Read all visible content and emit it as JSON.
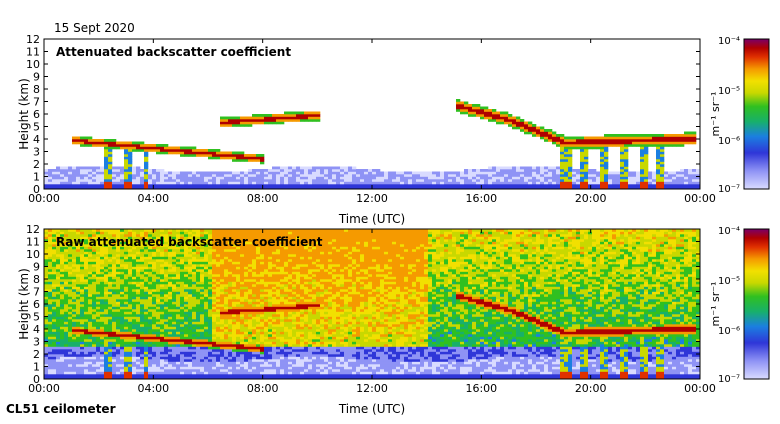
{
  "date": "15 Sept 2020",
  "footer": "CL51 ceilometer",
  "colormap": [
    "#d9dbff",
    "#8f93f5",
    "#2f36d8",
    "#1b7fe0",
    "#18b06a",
    "#30c020",
    "#c8d800",
    "#f2e000",
    "#f59a00",
    "#e03000",
    "#b00000",
    "#7a006a"
  ],
  "chart_data": [
    {
      "type": "heatmap",
      "title": "Attenuated backscatter coefficient",
      "xlabel": "Time (UTC)",
      "ylabel": "Height (km)",
      "xlim": [
        "00:00",
        "00:00"
      ],
      "ylim": [
        0,
        12
      ],
      "x_ticks": [
        "00:00",
        "04:00",
        "08:00",
        "12:00",
        "16:00",
        "20:00",
        "00:00"
      ],
      "y_ticks": [
        "0",
        "1",
        "2",
        "3",
        "4",
        "5",
        "6",
        "7",
        "8",
        "9",
        "10",
        "11",
        "12"
      ],
      "colorbar": {
        "label": "m⁻¹ sr⁻¹",
        "scale": "log",
        "ticks": [
          "10⁻⁷",
          "10⁻⁶",
          "10⁻⁵",
          "10⁻⁴"
        ],
        "range": [
          1e-07,
          0.0001
        ]
      },
      "features": [
        {
          "name": "boundary layer",
          "t_start": 0.0,
          "t_end": 24.0,
          "height_top_km": 1.6
        },
        {
          "name": "cloud layer A",
          "t_start": 1.0,
          "t_end": 8.0,
          "height_km": [
            3.9,
            2.4
          ]
        },
        {
          "name": "cloud layer B",
          "t_start": 6.3,
          "t_end": 10.0,
          "height_km": [
            5.3,
            5.9
          ]
        },
        {
          "name": "cloud layer C",
          "t_start": 15.0,
          "t_end": 23.8,
          "height_km": [
            6.7,
            4.0
          ]
        },
        {
          "name": "precipitation",
          "t_start": 1.8,
          "t_end": 3.8,
          "height_km": [
            3.5,
            0.0
          ]
        },
        {
          "name": "precipitation",
          "t_start": 18.5,
          "t_end": 23.0,
          "height_km": [
            3.5,
            0.0
          ]
        }
      ]
    },
    {
      "type": "heatmap",
      "title": "Raw attenuated backscatter coefficient",
      "xlabel": "Time (UTC)",
      "ylabel": "Height (km)",
      "xlim": [
        "00:00",
        "00:00"
      ],
      "ylim": [
        0,
        12
      ],
      "x_ticks": [
        "00:00",
        "04:00",
        "08:00",
        "12:00",
        "16:00",
        "20:00",
        "00:00"
      ],
      "y_ticks": [
        "0",
        "1",
        "2",
        "3",
        "4",
        "5",
        "6",
        "7",
        "8",
        "9",
        "10",
        "11",
        "12"
      ],
      "colorbar": {
        "label": "m⁻¹ sr⁻¹",
        "scale": "log",
        "ticks": [
          "10⁻⁷",
          "10⁻⁶",
          "10⁻⁵",
          "10⁻⁴"
        ],
        "range": [
          1e-07,
          0.0001
        ]
      },
      "features": [
        {
          "name": "background noise",
          "t_start": 0.0,
          "t_end": 24.0,
          "height_km": [
            2.5,
            12.0
          ]
        },
        {
          "name": "cloud layer A",
          "t_start": 1.0,
          "t_end": 8.0,
          "height_km": [
            3.9,
            2.4
          ]
        },
        {
          "name": "cloud layer B",
          "t_start": 6.3,
          "t_end": 10.0,
          "height_km": [
            5.3,
            5.9
          ]
        },
        {
          "name": "cloud layer C",
          "t_start": 15.0,
          "t_end": 23.8,
          "height_km": [
            6.7,
            4.0
          ]
        }
      ]
    }
  ]
}
